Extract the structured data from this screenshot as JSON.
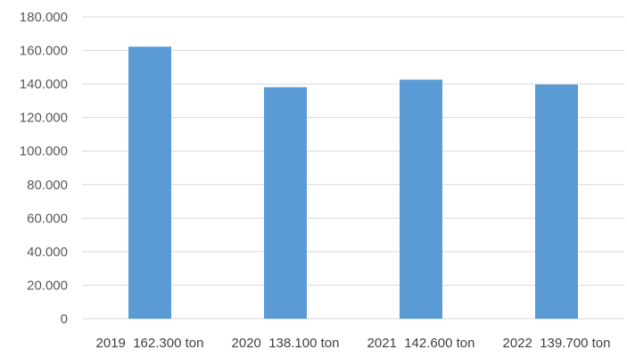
{
  "chart_data": {
    "type": "bar",
    "categories": [
      "2019  162.300 ton",
      "2020  138.100 ton",
      "2021  142.600 ton",
      "2022  139.700 ton"
    ],
    "values": [
      162300,
      138100,
      142600,
      139700
    ],
    "ylim": [
      0,
      180000
    ],
    "yticks": [
      0,
      20000,
      40000,
      60000,
      80000,
      100000,
      120000,
      140000,
      160000,
      180000
    ],
    "ytick_labels": [
      "0",
      "20.000",
      "40.000",
      "60.000",
      "80.000",
      "100.000",
      "120.000",
      "140.000",
      "160.000",
      "180.000"
    ],
    "grid": true,
    "legend": "none",
    "bar_color": "#5b9bd5"
  }
}
